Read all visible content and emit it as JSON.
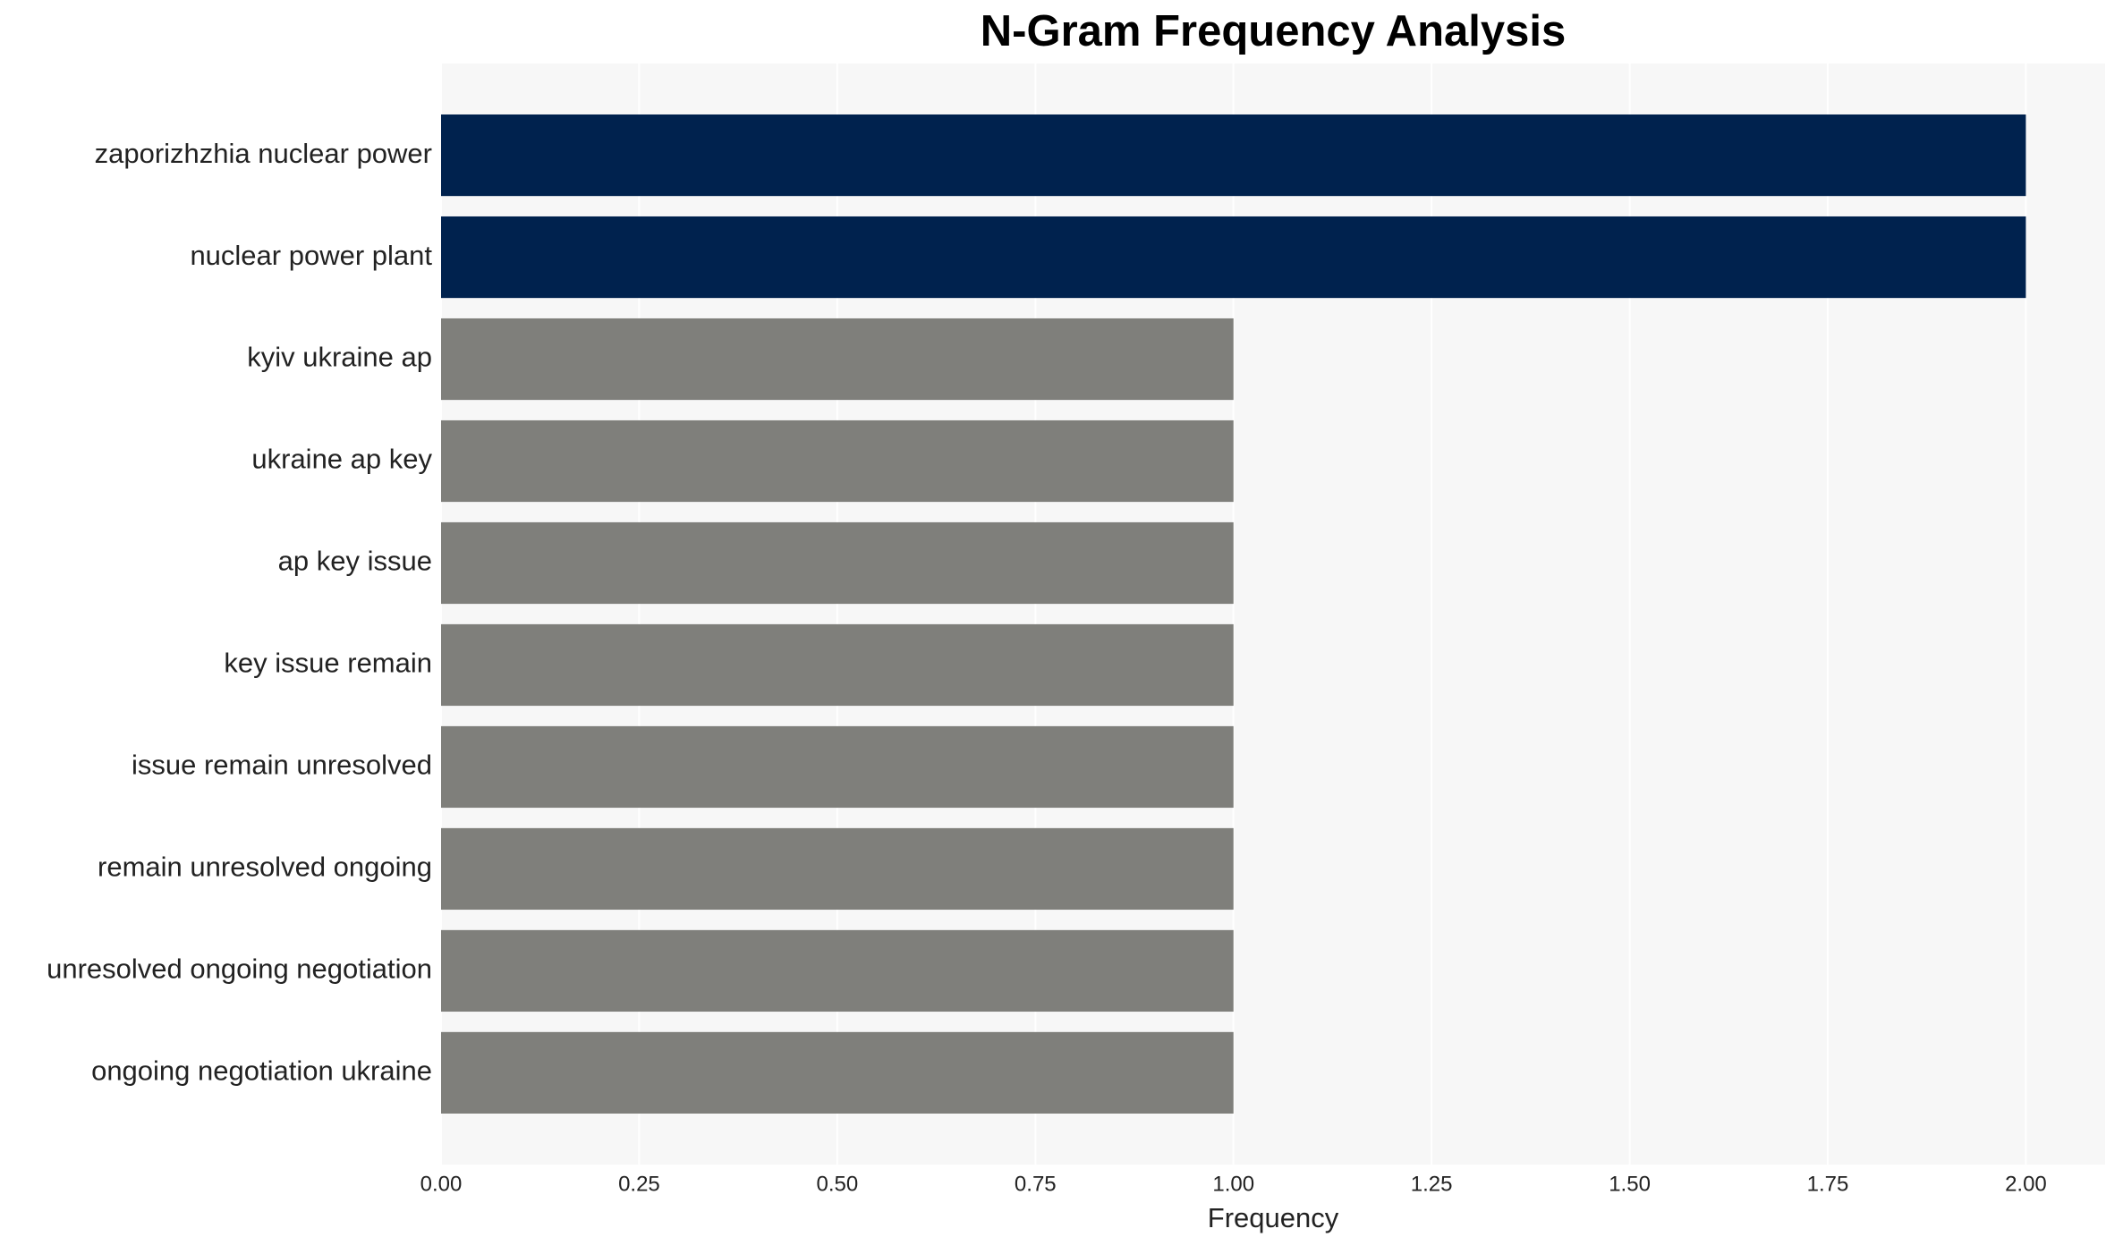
{
  "chart_data": {
    "type": "bar",
    "orientation": "horizontal",
    "title": "N-Gram Frequency Analysis",
    "x_label": "Frequency",
    "categories": [
      "zaporizhzhia nuclear power",
      "nuclear power plant",
      "kyiv ukraine ap",
      "ukraine ap key",
      "ap key issue",
      "key issue remain",
      "issue remain unresolved",
      "remain unresolved ongoing",
      "unresolved ongoing negotiation",
      "ongoing negotiation ukraine"
    ],
    "values": [
      2,
      2,
      1,
      1,
      1,
      1,
      1,
      1,
      1,
      1
    ],
    "colors": [
      "#00224e",
      "#00224e",
      "#7f7f7b",
      "#7f7f7b",
      "#7f7f7b",
      "#7f7f7b",
      "#7f7f7b",
      "#7f7f7b",
      "#7f7f7b",
      "#7f7f7b"
    ],
    "xlim": [
      0,
      2.1
    ],
    "xticks": [
      {
        "value": 0,
        "label": "0.00"
      },
      {
        "value": 0.25,
        "label": "0.25"
      },
      {
        "value": 0.5,
        "label": "0.50"
      },
      {
        "value": 0.75,
        "label": "0.75"
      },
      {
        "value": 1,
        "label": "1.00"
      },
      {
        "value": 1.25,
        "label": "1.25"
      },
      {
        "value": 1.5,
        "label": "1.50"
      },
      {
        "value": 1.75,
        "label": "1.75"
      },
      {
        "value": 2,
        "label": "2.00"
      }
    ],
    "grid": true
  }
}
